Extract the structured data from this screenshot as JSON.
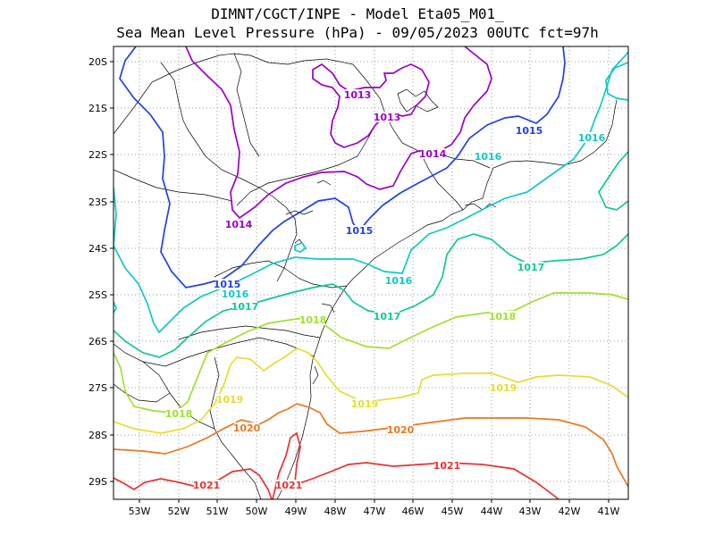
{
  "header": {
    "line1": "DIMNT/CGCT/INPE -  Model Eta05_M01_",
    "line2": "Sea Mean Level Pressure (hPa) - 09/05/2023 00UTC fct=97h"
  },
  "axes": {
    "lat_labels": [
      "20S",
      "21S",
      "22S",
      "23S",
      "24S",
      "25S",
      "26S",
      "27S",
      "28S",
      "29S"
    ],
    "lon_labels": [
      "53W",
      "52W",
      "51W",
      "50W",
      "49W",
      "48W",
      "47W",
      "46W",
      "45W",
      "44W",
      "43W",
      "42W",
      "41W"
    ]
  },
  "colors": {
    "1013": "#9a00c8",
    "1014": "#9a00c8",
    "1015": "#2040e8",
    "1016": "#10c8c8",
    "1017": "#10c89a",
    "1018": "#a0e030",
    "1019": "#e6dc32",
    "1020": "#e87820",
    "1021": "#e83232",
    "coast": "#000000",
    "grid": "#999999"
  },
  "contour_labels": [
    {
      "text": "1013",
      "level": "1013"
    },
    {
      "text": "1013",
      "level": "1013"
    },
    {
      "text": "1014",
      "level": "1014"
    },
    {
      "text": "1014",
      "level": "1014"
    },
    {
      "text": "1015",
      "level": "1015"
    },
    {
      "text": "1015",
      "level": "1015"
    },
    {
      "text": "1015",
      "level": "1015"
    },
    {
      "text": "1016",
      "level": "1016"
    },
    {
      "text": "1016",
      "level": "1016"
    },
    {
      "text": "1016",
      "level": "1016"
    },
    {
      "text": "1016",
      "level": "1016"
    },
    {
      "text": "1017",
      "level": "1017"
    },
    {
      "text": "1017",
      "level": "1017"
    },
    {
      "text": "1017",
      "level": "1017"
    },
    {
      "text": "1018",
      "level": "1018"
    },
    {
      "text": "1018",
      "level": "1018"
    },
    {
      "text": "1018",
      "level": "1018"
    },
    {
      "text": "1019",
      "level": "1019"
    },
    {
      "text": "1019",
      "level": "1019"
    },
    {
      "text": "1019",
      "level": "1019"
    },
    {
      "text": "1020",
      "level": "1020"
    },
    {
      "text": "1020",
      "level": "1020"
    },
    {
      "text": "1021",
      "level": "1021"
    },
    {
      "text": "1021",
      "level": "1021"
    },
    {
      "text": "1021",
      "level": "1021"
    }
  ]
}
